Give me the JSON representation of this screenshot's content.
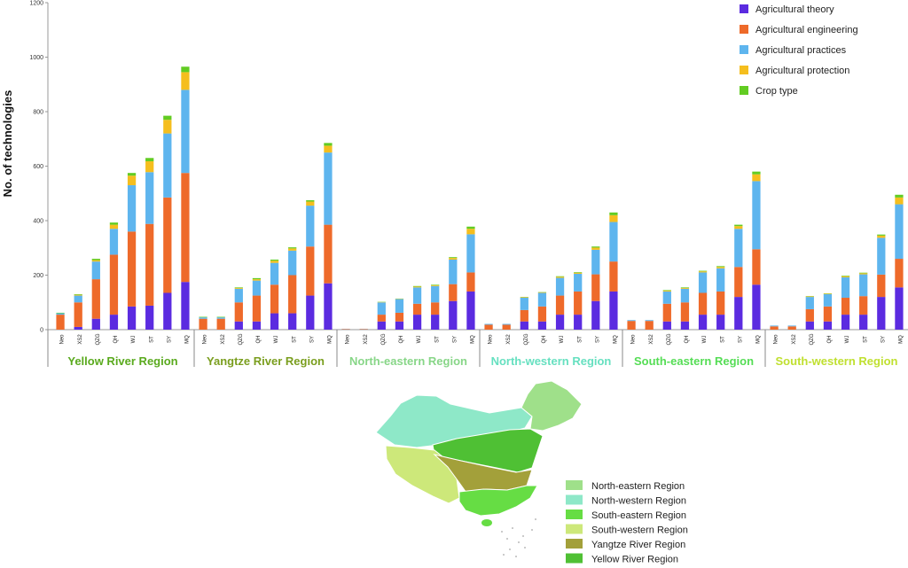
{
  "chart_data": {
    "type": "bar",
    "stacked": true,
    "ylabel": "No. of technologies",
    "ylim": [
      0,
      1200
    ],
    "yticks": [
      0,
      200,
      400,
      600,
      800,
      1000,
      1200
    ],
    "grid": false,
    "legend_position": "top-right",
    "categories": [
      "Neo",
      "XS2",
      "QZG",
      "QH",
      "WJ",
      "ST",
      "SY",
      "MQ"
    ],
    "series": [
      {
        "name": "Agricultural theory",
        "color": "#5b2be0"
      },
      {
        "name": "Agricultural engineering",
        "color": "#ee6a2a"
      },
      {
        "name": "Agricultural practices",
        "color": "#5eb5ee"
      },
      {
        "name": "Agricultural protection",
        "color": "#f5be1e"
      },
      {
        "name": "Crop type",
        "color": "#62cc22"
      }
    ],
    "groups": [
      {
        "label": "Yellow River Region",
        "color": "#5aaa1e",
        "values": [
          [
            0,
            55,
            5,
            0,
            2
          ],
          [
            10,
            90,
            25,
            3,
            2
          ],
          [
            40,
            145,
            65,
            5,
            5
          ],
          [
            55,
            220,
            95,
            15,
            8
          ],
          [
            85,
            275,
            170,
            35,
            10
          ],
          [
            88,
            300,
            190,
            40,
            12
          ],
          [
            135,
            350,
            235,
            50,
            15
          ],
          [
            175,
            400,
            305,
            65,
            20
          ]
        ]
      },
      {
        "label": "Yangtze River Region",
        "color": "#7a9e1e",
        "values": [
          [
            0,
            40,
            5,
            0,
            2
          ],
          [
            0,
            40,
            5,
            0,
            2
          ],
          [
            30,
            70,
            50,
            3,
            2
          ],
          [
            30,
            95,
            55,
            5,
            4
          ],
          [
            60,
            105,
            80,
            8,
            4
          ],
          [
            60,
            140,
            90,
            8,
            4
          ],
          [
            125,
            180,
            150,
            15,
            5
          ],
          [
            170,
            215,
            265,
            25,
            10
          ]
        ]
      },
      {
        "label": "North-eastern Region",
        "color": "#88d688",
        "values": [
          [
            0,
            2,
            1,
            0,
            0
          ],
          [
            0,
            2,
            1,
            0,
            0
          ],
          [
            30,
            25,
            45,
            1,
            1
          ],
          [
            30,
            32,
            50,
            1,
            1
          ],
          [
            55,
            40,
            60,
            3,
            2
          ],
          [
            55,
            45,
            60,
            3,
            2
          ],
          [
            105,
            62,
            90,
            6,
            3
          ],
          [
            140,
            70,
            140,
            20,
            8
          ]
        ]
      },
      {
        "label": "North-western Region",
        "color": "#66e0c0",
        "values": [
          [
            0,
            18,
            3,
            0,
            0
          ],
          [
            0,
            18,
            3,
            0,
            0
          ],
          [
            30,
            42,
            45,
            2,
            1
          ],
          [
            30,
            55,
            50,
            2,
            1
          ],
          [
            55,
            70,
            65,
            4,
            2
          ],
          [
            55,
            85,
            65,
            4,
            2
          ],
          [
            105,
            98,
            90,
            8,
            4
          ],
          [
            140,
            110,
            145,
            25,
            10
          ]
        ]
      },
      {
        "label": "South-eastern Region",
        "color": "#55dd55",
        "values": [
          [
            0,
            32,
            3,
            0,
            0
          ],
          [
            0,
            32,
            3,
            0,
            0
          ],
          [
            30,
            65,
            45,
            3,
            2
          ],
          [
            30,
            70,
            50,
            3,
            2
          ],
          [
            55,
            80,
            75,
            4,
            2
          ],
          [
            55,
            85,
            85,
            5,
            3
          ],
          [
            120,
            110,
            140,
            10,
            5
          ],
          [
            165,
            130,
            250,
            25,
            10
          ]
        ]
      },
      {
        "label": "South-western Region",
        "color": "#c0e030",
        "values": [
          [
            0,
            12,
            3,
            0,
            0
          ],
          [
            0,
            12,
            3,
            0,
            0
          ],
          [
            30,
            45,
            45,
            2,
            1
          ],
          [
            30,
            55,
            45,
            2,
            1
          ],
          [
            55,
            62,
            75,
            4,
            2
          ],
          [
            55,
            68,
            80,
            4,
            2
          ],
          [
            120,
            82,
            135,
            8,
            4
          ],
          [
            155,
            105,
            200,
            25,
            10
          ]
        ]
      }
    ]
  },
  "map_legend": [
    {
      "label": "North-eastern Region",
      "color": "#9fe08a"
    },
    {
      "label": "North-western Region",
      "color": "#8ee8c8"
    },
    {
      "label": "South-eastern Region",
      "color": "#66dd44"
    },
    {
      "label": "South-western Region",
      "color": "#cde87a"
    },
    {
      "label": "Yangtze River Region",
      "color": "#a3a03a"
    },
    {
      "label": "Yellow River Region",
      "color": "#4fc034"
    }
  ]
}
